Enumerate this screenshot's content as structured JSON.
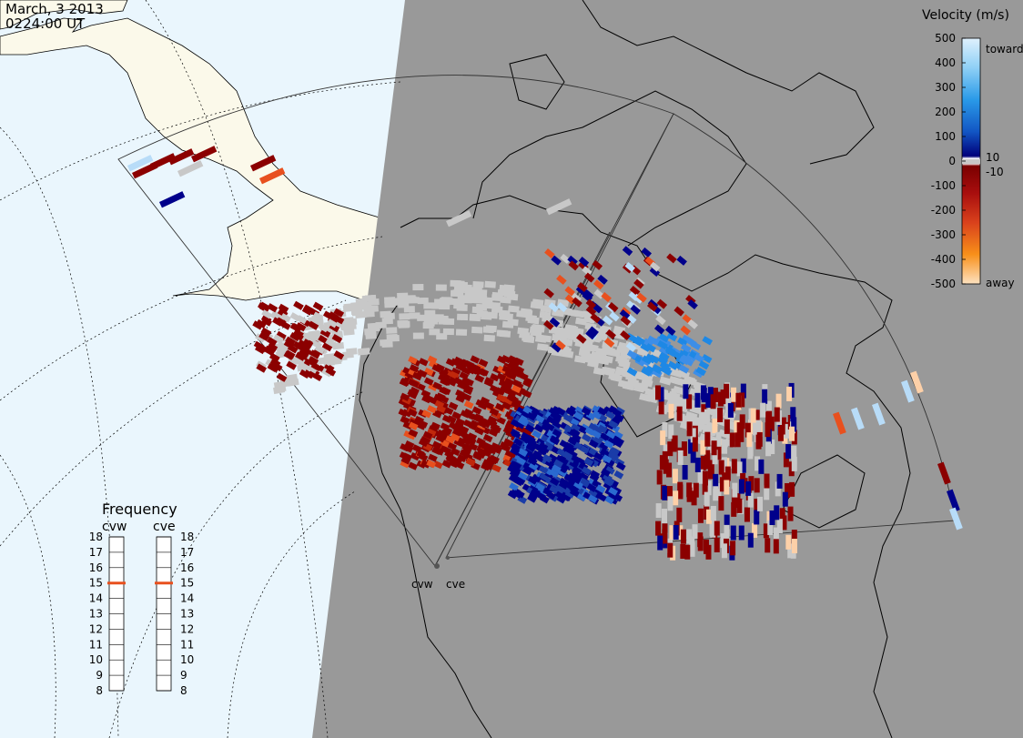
{
  "header": {
    "date": "March, 3 2013",
    "time": "0224:00 UT"
  },
  "velocity_scale": {
    "title": "Velocity (m/s)",
    "ticks": [
      "500",
      "400",
      "300",
      "200",
      "100",
      "0",
      "-100",
      "-200",
      "-300",
      "-400",
      "-500"
    ],
    "inner_ticks": [
      "10",
      "-10"
    ],
    "toward_label": "toward",
    "away_label": "away",
    "colors": {
      "toward_light": "#b8dcf8",
      "toward_mid": "#1e88e5",
      "toward_dark": "#00008b",
      "ground_scatter": "#c8c8c8",
      "away_dark": "#8b0000",
      "away_mid": "#e8501e",
      "away_light": "#fdd0a8"
    }
  },
  "frequency": {
    "title": "Frequency",
    "radars": [
      {
        "name": "cvw",
        "value": 15
      },
      {
        "name": "cve",
        "value": 15
      }
    ],
    "ticks": [
      "18",
      "17",
      "16",
      "15",
      "14",
      "13",
      "12",
      "11",
      "10",
      "9",
      "8"
    ]
  },
  "radar_sites": {
    "cvw_label": "cvw",
    "cve_label": "cve"
  },
  "map_colors": {
    "ocean_day": "#eaf6fd",
    "land_day": "#fbf9ea",
    "night": "#999999",
    "coastline": "#000000"
  }
}
